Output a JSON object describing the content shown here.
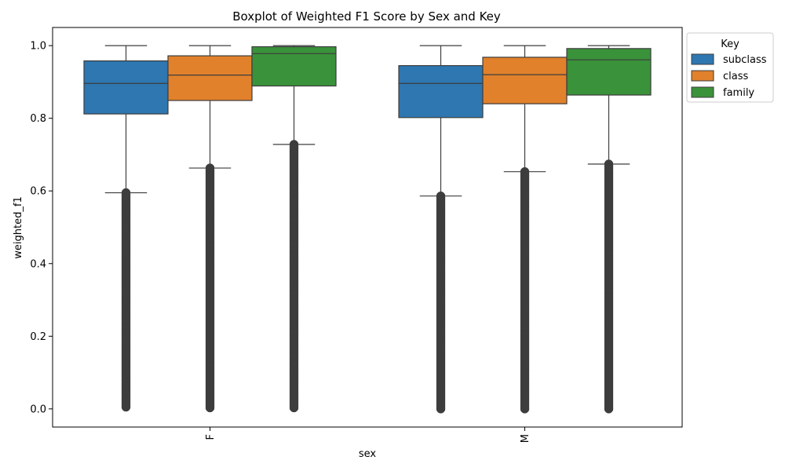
{
  "chart_data": {
    "type": "boxplot",
    "title": "Boxplot of Weighted F1 Score by Sex and Key",
    "xlabel": "sex",
    "ylabel": "weighted_f1",
    "ylim": [
      -0.05,
      1.05
    ],
    "yticks": [
      0.0,
      0.2,
      0.4,
      0.6,
      0.8,
      1.0
    ],
    "ytick_labels": [
      "0.0",
      "0.2",
      "0.4",
      "0.6",
      "0.8",
      "1.0"
    ],
    "categories": [
      "F",
      "M"
    ],
    "legend": {
      "title": "Key",
      "placement": "outside-top-right"
    },
    "series": [
      {
        "name": "subclass",
        "color": "#2e77b1",
        "boxes": [
          {
            "category": "F",
            "whisker_low": 0.595,
            "q1": 0.812,
            "median": 0.896,
            "q3": 0.958,
            "whisker_high": 1.0,
            "outlier_range": [
              0.005,
              0.595
            ]
          },
          {
            "category": "M",
            "whisker_low": 0.586,
            "q1": 0.802,
            "median": 0.896,
            "q3": 0.945,
            "whisker_high": 1.0,
            "outlier_range": [
              0.0,
              0.586
            ]
          }
        ]
      },
      {
        "name": "class",
        "color": "#e1812c",
        "boxes": [
          {
            "category": "F",
            "whisker_low": 0.663,
            "q1": 0.849,
            "median": 0.919,
            "q3": 0.972,
            "whisker_high": 1.0,
            "outlier_range": [
              0.003,
              0.663
            ]
          },
          {
            "category": "M",
            "whisker_low": 0.653,
            "q1": 0.84,
            "median": 0.92,
            "q3": 0.968,
            "whisker_high": 1.0,
            "outlier_range": [
              0.0,
              0.653
            ]
          }
        ]
      },
      {
        "name": "family",
        "color": "#3a923a",
        "boxes": [
          {
            "category": "F",
            "whisker_low": 0.728,
            "q1": 0.889,
            "median": 0.978,
            "q3": 0.997,
            "whisker_high": 1.0,
            "outlier_range": [
              0.003,
              0.728
            ]
          },
          {
            "category": "M",
            "whisker_low": 0.674,
            "q1": 0.864,
            "median": 0.961,
            "q3": 0.992,
            "whisker_high": 1.0,
            "outlier_range": [
              0.0,
              0.674
            ]
          }
        ]
      }
    ]
  }
}
